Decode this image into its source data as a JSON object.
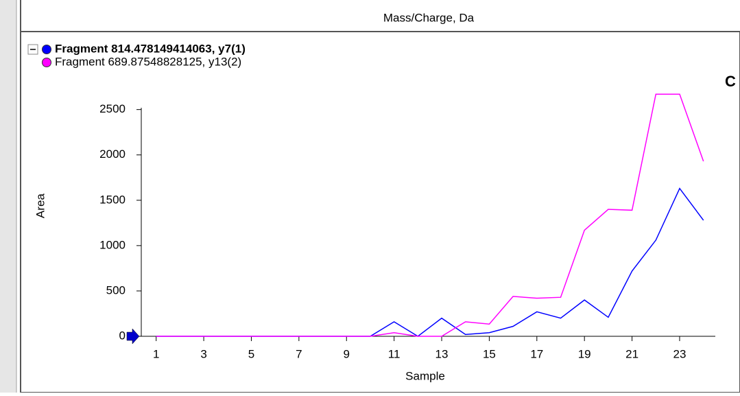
{
  "header": "Mass/Charge, Da",
  "panel_label": "C",
  "chart_data": {
    "type": "line",
    "xlabel": "Sample",
    "ylabel": "Area",
    "x": [
      1,
      2,
      3,
      4,
      5,
      6,
      7,
      8,
      9,
      10,
      11,
      12,
      13,
      14,
      15,
      16,
      17,
      18,
      19,
      20,
      21,
      22,
      23,
      24
    ],
    "series": [
      {
        "name": "Fragment 814.478149414063, y7(1)",
        "color": "#0000ff",
        "values": [
          0,
          0,
          0,
          0,
          0,
          0,
          0,
          0,
          0,
          0,
          160,
          0,
          200,
          20,
          40,
          110,
          270,
          200,
          400,
          210,
          720,
          1060,
          1630,
          1280
        ]
      },
      {
        "name": "Fragment 689.87548828125, y13(2)",
        "color": "#ff00ff",
        "values": [
          0,
          0,
          0,
          0,
          0,
          0,
          0,
          0,
          0,
          0,
          40,
          0,
          0,
          160,
          135,
          440,
          420,
          430,
          1170,
          1400,
          1390,
          2670,
          2670,
          1930
        ]
      }
    ],
    "xlim": [
      0,
      24.5
    ],
    "xticks": [
      1,
      3,
      5,
      7,
      9,
      11,
      13,
      15,
      17,
      19,
      21,
      23
    ],
    "ylim": [
      0,
      2520
    ],
    "yticks": [
      0,
      500,
      1000,
      1500,
      2000,
      2500
    ]
  }
}
